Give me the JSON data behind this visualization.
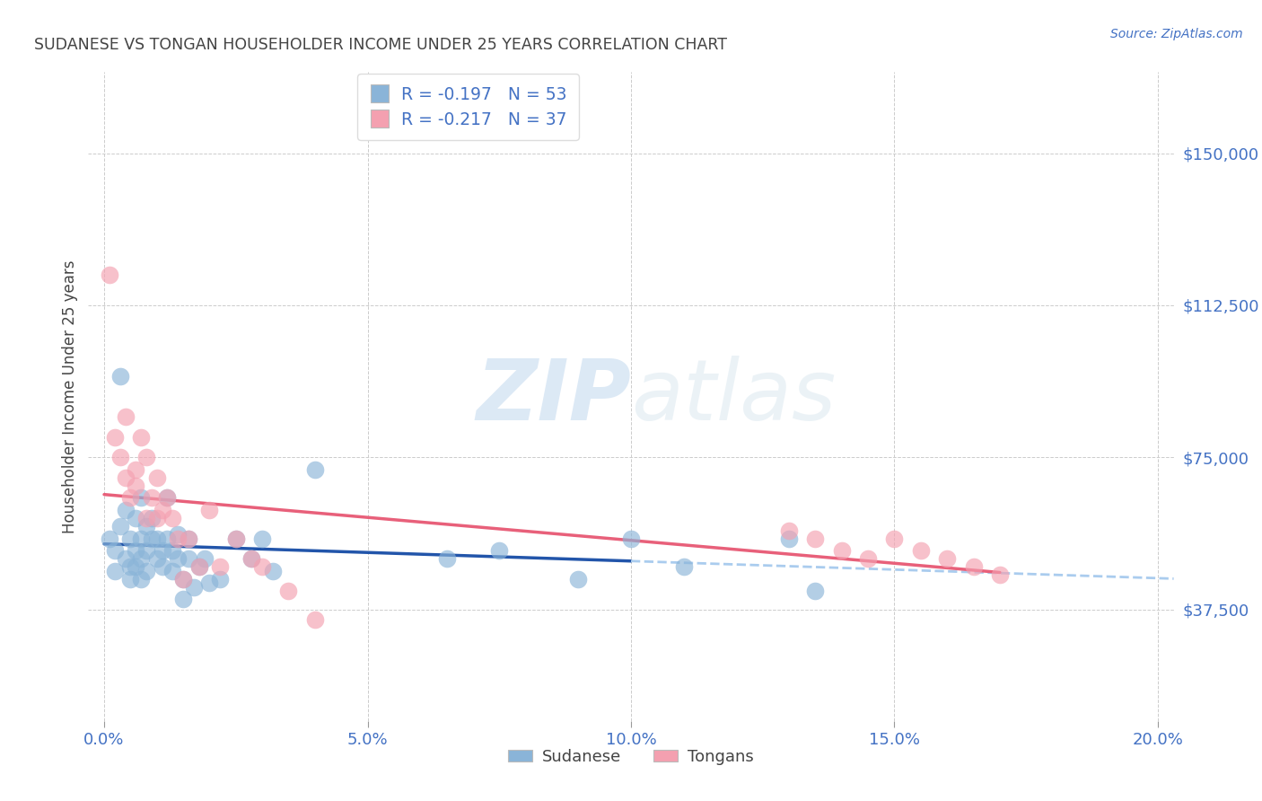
{
  "title": "SUDANESE VS TONGAN HOUSEHOLDER INCOME UNDER 25 YEARS CORRELATION CHART",
  "source": "Source: ZipAtlas.com",
  "ylabel": "Householder Income Under 25 years",
  "xlabel_ticks": [
    "0.0%",
    "5.0%",
    "10.0%",
    "15.0%",
    "20.0%"
  ],
  "xlabel_vals": [
    0.0,
    0.05,
    0.1,
    0.15,
    0.2
  ],
  "ytick_labels": [
    "$37,500",
    "$75,000",
    "$112,500",
    "$150,000"
  ],
  "ytick_vals": [
    37500,
    75000,
    112500,
    150000
  ],
  "ylim": [
    10000,
    170000
  ],
  "xlim": [
    -0.003,
    0.203
  ],
  "title_color": "#444444",
  "source_color": "#4472c4",
  "yaxis_color": "#4472c4",
  "xaxis_color": "#4472c4",
  "watermark_zip": "ZIP",
  "watermark_atlas": "atlas",
  "legend_line1": "R = -0.197   N = 53",
  "legend_line2": "R = -0.217   N = 37",
  "legend_label1": "Sudanese",
  "legend_label2": "Tongans",
  "sudanese_color": "#8ab4d8",
  "tongan_color": "#f4a0b0",
  "sudanese_line_color": "#2255aa",
  "tongan_line_color": "#e8607a",
  "dashed_line_color": "#aaccee",
  "background_color": "#ffffff",
  "sudanese_x": [
    0.001,
    0.002,
    0.002,
    0.003,
    0.003,
    0.004,
    0.004,
    0.005,
    0.005,
    0.005,
    0.006,
    0.006,
    0.006,
    0.007,
    0.007,
    0.007,
    0.007,
    0.008,
    0.008,
    0.008,
    0.009,
    0.009,
    0.01,
    0.01,
    0.011,
    0.011,
    0.012,
    0.012,
    0.013,
    0.013,
    0.014,
    0.014,
    0.015,
    0.015,
    0.016,
    0.016,
    0.017,
    0.018,
    0.019,
    0.02,
    0.022,
    0.025,
    0.028,
    0.03,
    0.032,
    0.04,
    0.065,
    0.075,
    0.09,
    0.1,
    0.11,
    0.13,
    0.135
  ],
  "sudanese_y": [
    55000,
    52000,
    47000,
    58000,
    95000,
    50000,
    62000,
    55000,
    48000,
    45000,
    60000,
    52000,
    48000,
    65000,
    55000,
    50000,
    45000,
    58000,
    52000,
    47000,
    60000,
    55000,
    50000,
    55000,
    52000,
    48000,
    65000,
    55000,
    52000,
    47000,
    56000,
    50000,
    45000,
    40000,
    55000,
    50000,
    43000,
    48000,
    50000,
    44000,
    45000,
    55000,
    50000,
    55000,
    47000,
    72000,
    50000,
    52000,
    45000,
    55000,
    48000,
    55000,
    42000
  ],
  "tongan_x": [
    0.001,
    0.002,
    0.003,
    0.004,
    0.004,
    0.005,
    0.006,
    0.006,
    0.007,
    0.008,
    0.008,
    0.009,
    0.01,
    0.01,
    0.011,
    0.012,
    0.013,
    0.014,
    0.015,
    0.016,
    0.018,
    0.02,
    0.022,
    0.025,
    0.028,
    0.03,
    0.035,
    0.04,
    0.13,
    0.135,
    0.14,
    0.145,
    0.15,
    0.155,
    0.16,
    0.165,
    0.17
  ],
  "tongan_y": [
    120000,
    80000,
    75000,
    85000,
    70000,
    65000,
    72000,
    68000,
    80000,
    75000,
    60000,
    65000,
    60000,
    70000,
    62000,
    65000,
    60000,
    55000,
    45000,
    55000,
    48000,
    62000,
    48000,
    55000,
    50000,
    48000,
    42000,
    35000,
    57000,
    55000,
    52000,
    50000,
    55000,
    52000,
    50000,
    48000,
    46000
  ]
}
